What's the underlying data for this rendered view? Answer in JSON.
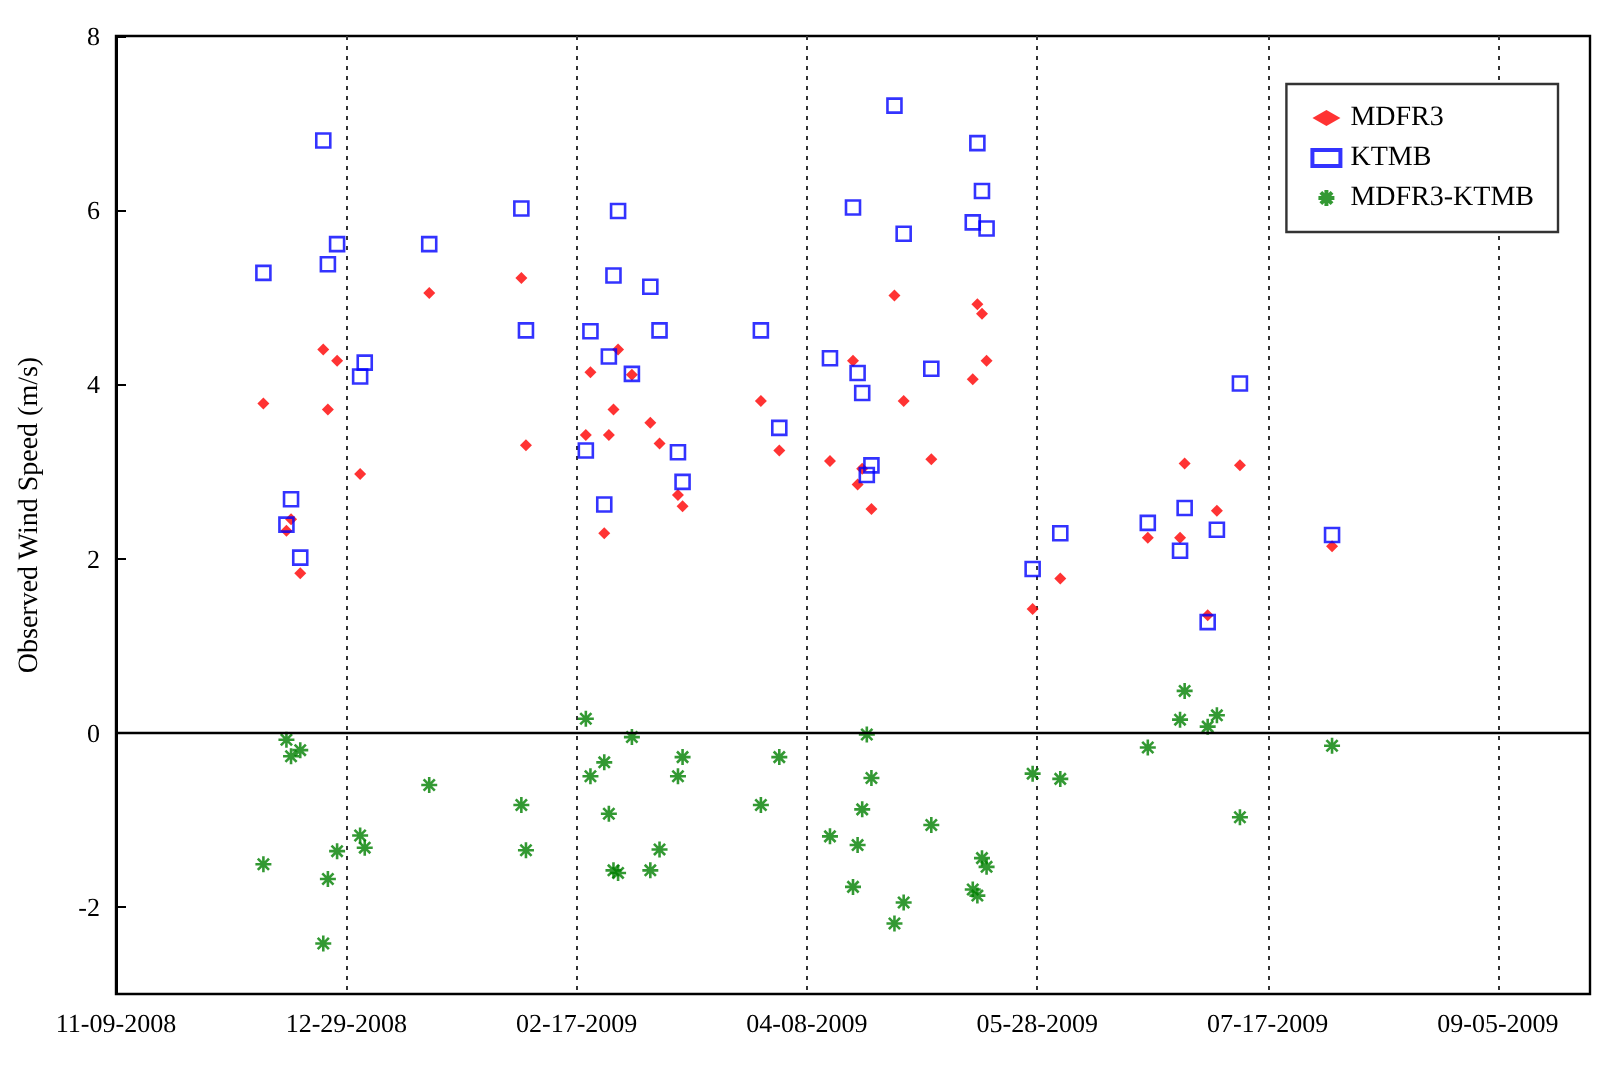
{
  "chart_data": {
    "type": "scatter",
    "ylabel": "Observed Wind Speed (m/s)",
    "xlim": [
      "2008-11-09",
      "2009-09-25"
    ],
    "xticks": [
      {
        "value": "2008-11-09",
        "label": "11-09-2008"
      },
      {
        "value": "2008-12-29",
        "label": "12-29-2008"
      },
      {
        "value": "2009-02-17",
        "label": "02-17-2009"
      },
      {
        "value": "2009-04-08",
        "label": "04-08-2009"
      },
      {
        "value": "2009-05-28",
        "label": "05-28-2009"
      },
      {
        "value": "2009-07-17",
        "label": "07-17-2009"
      },
      {
        "value": "2009-09-05",
        "label": "09-05-2009"
      }
    ],
    "ylim": [
      -3,
      8
    ],
    "yticks": [
      -2,
      0,
      2,
      4,
      6,
      8
    ],
    "grid": "x",
    "legend": "top right",
    "ref_lines": [
      {
        "axis": "y",
        "value": 0,
        "color": "#000000"
      }
    ],
    "series": [
      {
        "name": "MDFR3",
        "color": "#ff0000",
        "marker": "diamond",
        "x": [
          "2008-12-11",
          "2008-12-16",
          "2008-12-17",
          "2008-12-19",
          "2008-12-24",
          "2008-12-25",
          "2008-12-27",
          "2009-01-01",
          "2009-01-16",
          "2009-02-05",
          "2009-02-06",
          "2009-02-19",
          "2009-02-20",
          "2009-02-23",
          "2009-02-24",
          "2009-02-25",
          "2009-02-26",
          "2009-03-01",
          "2009-03-05",
          "2009-03-07",
          "2009-03-11",
          "2009-03-12",
          "2009-03-29",
          "2009-04-02",
          "2009-04-13",
          "2009-04-18",
          "2009-04-19",
          "2009-04-20",
          "2009-04-22",
          "2009-04-27",
          "2009-04-29",
          "2009-05-05",
          "2009-05-14",
          "2009-05-15",
          "2009-05-16",
          "2009-05-17",
          "2009-05-27",
          "2009-06-02",
          "2009-06-21",
          "2009-06-28",
          "2009-06-29",
          "2009-07-04",
          "2009-07-06",
          "2009-07-11",
          "2009-07-31"
        ],
        "values": [
          3.78,
          2.32,
          2.45,
          1.83,
          4.4,
          3.71,
          4.27,
          2.97,
          5.05,
          5.22,
          3.3,
          3.42,
          4.14,
          2.29,
          3.42,
          3.71,
          4.4,
          4.11,
          3.56,
          3.32,
          2.73,
          2.6,
          3.81,
          3.24,
          3.12,
          4.27,
          2.85,
          3.03,
          2.57,
          5.02,
          3.81,
          3.14,
          4.06,
          4.92,
          4.81,
          4.27,
          1.42,
          1.77,
          2.24,
          2.24,
          3.09,
          1.35,
          2.55,
          3.07,
          2.14
        ]
      },
      {
        "name": "KTMB",
        "color": "#0000ff",
        "marker": "square",
        "x": [
          "2008-12-11",
          "2008-12-16",
          "2008-12-17",
          "2008-12-19",
          "2008-12-24",
          "2008-12-25",
          "2008-12-27",
          "2009-01-01",
          "2009-01-02",
          "2009-01-16",
          "2009-02-05",
          "2009-02-06",
          "2009-02-19",
          "2009-02-20",
          "2009-02-23",
          "2009-02-24",
          "2009-02-25",
          "2009-02-26",
          "2009-03-01",
          "2009-03-05",
          "2009-03-07",
          "2009-03-11",
          "2009-03-12",
          "2009-03-29",
          "2009-04-02",
          "2009-04-13",
          "2009-04-18",
          "2009-04-19",
          "2009-04-20",
          "2009-04-21",
          "2009-04-22",
          "2009-04-27",
          "2009-04-29",
          "2009-05-05",
          "2009-05-14",
          "2009-05-15",
          "2009-05-16",
          "2009-05-17",
          "2009-05-27",
          "2009-06-02",
          "2009-06-21",
          "2009-06-28",
          "2009-06-29",
          "2009-07-04",
          "2009-07-06",
          "2009-07-11",
          "2009-07-31"
        ],
        "values": [
          5.28,
          2.39,
          2.68,
          2.01,
          6.8,
          5.38,
          5.61,
          4.09,
          4.25,
          5.61,
          6.02,
          4.62,
          3.24,
          4.61,
          2.62,
          4.32,
          5.25,
          5.99,
          4.12,
          5.12,
          4.62,
          3.22,
          2.88,
          4.62,
          3.5,
          4.3,
          6.03,
          4.13,
          3.9,
          2.96,
          3.07,
          7.2,
          5.73,
          4.18,
          5.86,
          6.77,
          6.22,
          5.79,
          1.88,
          2.29,
          2.41,
          2.09,
          2.58,
          1.27,
          2.33,
          4.01,
          2.27
        ]
      },
      {
        "name": "MDFR3-KTMB",
        "color": "#008000",
        "marker": "cross",
        "x": [
          "2008-12-11",
          "2008-12-16",
          "2008-12-17",
          "2008-12-19",
          "2008-12-24",
          "2008-12-25",
          "2008-12-27",
          "2009-01-01",
          "2009-01-02",
          "2009-01-16",
          "2009-02-05",
          "2009-02-06",
          "2009-02-19",
          "2009-02-20",
          "2009-02-23",
          "2009-02-24",
          "2009-02-25",
          "2009-02-26",
          "2009-03-01",
          "2009-03-05",
          "2009-03-07",
          "2009-03-11",
          "2009-03-12",
          "2009-03-29",
          "2009-04-02",
          "2009-04-13",
          "2009-04-18",
          "2009-04-19",
          "2009-04-20",
          "2009-04-21",
          "2009-04-22",
          "2009-04-27",
          "2009-04-29",
          "2009-05-05",
          "2009-05-14",
          "2009-05-15",
          "2009-05-16",
          "2009-05-17",
          "2009-05-27",
          "2009-06-02",
          "2009-06-21",
          "2009-06-28",
          "2009-06-29",
          "2009-07-04",
          "2009-07-06",
          "2009-07-11",
          "2009-07-31"
        ],
        "values": [
          -1.51,
          -0.08,
          -0.27,
          -0.2,
          -2.42,
          -1.68,
          -1.36,
          -1.18,
          -1.32,
          -0.6,
          -0.83,
          -1.35,
          0.16,
          -0.5,
          -0.34,
          -0.93,
          -1.58,
          -1.61,
          -0.05,
          -1.58,
          -1.34,
          -0.5,
          -0.28,
          -0.83,
          -0.28,
          -1.19,
          -1.77,
          -1.29,
          -0.88,
          -0.02,
          -0.52,
          -2.19,
          -1.95,
          -1.06,
          -1.8,
          -1.87,
          -1.44,
          -1.54,
          -0.47,
          -0.53,
          -0.17,
          0.15,
          0.48,
          0.07,
          0.2,
          -0.97,
          -0.15
        ]
      }
    ]
  }
}
